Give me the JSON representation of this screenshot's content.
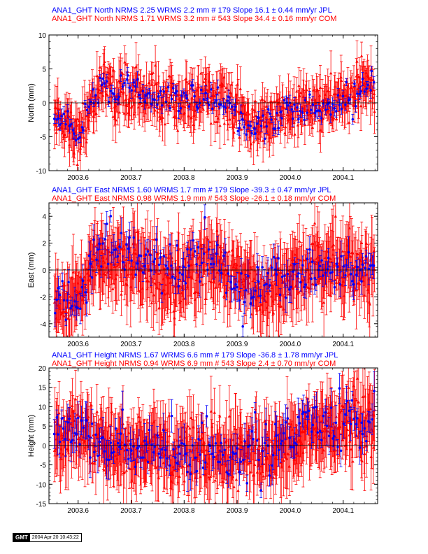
{
  "colors": {
    "jpl": "#0000ff",
    "com": "#ff0000",
    "axis": "#000000"
  },
  "footer": {
    "logo": "GMT",
    "timestamp": "2004 Apr 20 10:43:22"
  },
  "chart_data": [
    {
      "type": "scatter",
      "component": "north",
      "ylabel": "North (mm)",
      "ylim": [
        -10,
        10
      ],
      "yticks": [
        -10,
        -5,
        0,
        5,
        10
      ],
      "xlim": [
        2003.545,
        2004.165
      ],
      "xticks": [
        "2003.6",
        "2003.7",
        "2003.8",
        "2003.9",
        "2004.0",
        "2004.1"
      ],
      "legend": [
        {
          "text": "ANA1_GHT North NRMS 2.25 WRMS  2.2 mm # 179 Slope   16.1 ±  0.44 mm/yr JPL",
          "color": "#0000ff"
        },
        {
          "text": "ANA1_GHT North NRMS 1.71 WRMS  3.2 mm # 543 Slope   34.4 ±  0.16 mm/yr COM",
          "color": "#ff0000"
        }
      ],
      "series": [
        {
          "name": "JPL",
          "n": 179,
          "slope_mm_per_yr": 16.1,
          "wrms_mm": 2.2,
          "sigma_mm": 0.8,
          "trend_anchors": [
            [
              2003.55,
              -2
            ],
            [
              2003.58,
              -3.5
            ],
            [
              2003.6,
              -5.5
            ],
            [
              2003.62,
              -1
            ],
            [
              2003.64,
              3
            ],
            [
              2003.68,
              1.5
            ],
            [
              2003.72,
              2
            ],
            [
              2003.76,
              1
            ],
            [
              2003.8,
              0.5
            ],
            [
              2003.84,
              1
            ],
            [
              2003.88,
              0.5
            ],
            [
              2003.9,
              -2
            ],
            [
              2003.93,
              -3.5
            ],
            [
              2003.96,
              -2.5
            ],
            [
              2004.0,
              -1.5
            ],
            [
              2004.04,
              -1
            ],
            [
              2004.08,
              -0.5
            ],
            [
              2004.12,
              1
            ],
            [
              2004.15,
              4
            ],
            [
              2004.16,
              2
            ]
          ]
        },
        {
          "name": "COM",
          "n": 543,
          "slope_mm_per_yr": 34.4,
          "wrms_mm": 3.2,
          "sigma_mm": 2.4,
          "trend_anchors": [
            [
              2003.55,
              -1
            ],
            [
              2003.58,
              -3
            ],
            [
              2003.6,
              -5
            ],
            [
              2003.62,
              -1
            ],
            [
              2003.64,
              2.5
            ],
            [
              2003.68,
              1.5
            ],
            [
              2003.72,
              1.5
            ],
            [
              2003.76,
              0.5
            ],
            [
              2003.8,
              0
            ],
            [
              2003.84,
              1
            ],
            [
              2003.88,
              0
            ],
            [
              2003.9,
              -2
            ],
            [
              2003.93,
              -3
            ],
            [
              2003.96,
              -2.5
            ],
            [
              2004.0,
              -1.5
            ],
            [
              2004.04,
              -0.5
            ],
            [
              2004.08,
              0
            ],
            [
              2004.12,
              1
            ],
            [
              2004.15,
              3
            ],
            [
              2004.16,
              1.5
            ]
          ]
        }
      ]
    },
    {
      "type": "scatter",
      "component": "east",
      "ylabel": "East (mm)",
      "ylim": [
        -5,
        5
      ],
      "yticks": [
        -4,
        -2,
        0,
        2,
        4
      ],
      "xlim": [
        2003.545,
        2004.165
      ],
      "xticks": [
        "2003.6",
        "2003.7",
        "2003.8",
        "2003.9",
        "2004.0",
        "2004.1"
      ],
      "legend": [
        {
          "text": "ANA1_GHT East NRMS 1.60 WRMS  1.7 mm # 179 Slope  -39.3 ±  0.47 mm/yr JPL",
          "color": "#0000ff"
        },
        {
          "text": "ANA1_GHT East NRMS 0.98 WRMS  1.9 mm # 543 Slope  -26.1 ±  0.18 mm/yr COM",
          "color": "#ff0000"
        }
      ],
      "series": [
        {
          "name": "JPL",
          "n": 179,
          "slope_mm_per_yr": -39.3,
          "wrms_mm": 1.7,
          "sigma_mm": 0.8,
          "trend_anchors": [
            [
              2003.55,
              -1.5
            ],
            [
              2003.58,
              -2
            ],
            [
              2003.61,
              -2.5
            ],
            [
              2003.63,
              1.5
            ],
            [
              2003.66,
              2
            ],
            [
              2003.7,
              1
            ],
            [
              2003.74,
              0.5
            ],
            [
              2003.78,
              0
            ],
            [
              2003.82,
              0.5
            ],
            [
              2003.86,
              1
            ],
            [
              2003.88,
              -0.5
            ],
            [
              2003.92,
              -1.5
            ],
            [
              2003.96,
              -1
            ],
            [
              2004.0,
              -0.5
            ],
            [
              2004.04,
              0
            ],
            [
              2004.08,
              0.5
            ],
            [
              2004.12,
              0
            ],
            [
              2004.16,
              0.5
            ]
          ]
        },
        {
          "name": "COM",
          "n": 543,
          "slope_mm_per_yr": -26.1,
          "wrms_mm": 1.9,
          "sigma_mm": 2.0,
          "trend_anchors": [
            [
              2003.55,
              -2
            ],
            [
              2003.58,
              -2.5
            ],
            [
              2003.61,
              -2
            ],
            [
              2003.63,
              1
            ],
            [
              2003.66,
              1
            ],
            [
              2003.7,
              0.5
            ],
            [
              2003.74,
              0
            ],
            [
              2003.78,
              -1
            ],
            [
              2003.82,
              0
            ],
            [
              2003.86,
              0.5
            ],
            [
              2003.88,
              -0.5
            ],
            [
              2003.92,
              -1
            ],
            [
              2003.96,
              -1.5
            ],
            [
              2004.0,
              -0.5
            ],
            [
              2004.04,
              0
            ],
            [
              2004.08,
              0.5
            ],
            [
              2004.12,
              0.5
            ],
            [
              2004.16,
              0
            ]
          ]
        }
      ]
    },
    {
      "type": "scatter",
      "component": "height",
      "ylabel": "Height (mm)",
      "ylim": [
        -15,
        20
      ],
      "yticks": [
        -15,
        -10,
        -5,
        0,
        5,
        10,
        15,
        20
      ],
      "xlim": [
        2003.545,
        2004.165
      ],
      "xticks": [
        "2003.6",
        "2003.7",
        "2003.8",
        "2003.9",
        "2004.0",
        "2004.1"
      ],
      "legend": [
        {
          "text": "ANA1_GHT Height NRMS 1.67 WRMS  6.6 mm # 179 Slope  -36.8 ±  1.78 mm/yr JPL",
          "color": "#0000ff"
        },
        {
          "text": "ANA1_GHT Height NRMS 0.94 WRMS  6.9 mm # 543 Slope    2.4 ±  0.70 mm/yr COM",
          "color": "#ff0000"
        }
      ],
      "series": [
        {
          "name": "JPL",
          "n": 179,
          "slope_mm_per_yr": -36.8,
          "wrms_mm": 6.6,
          "sigma_mm": 3.5,
          "trend_anchors": [
            [
              2003.55,
              5
            ],
            [
              2003.58,
              3
            ],
            [
              2003.62,
              2
            ],
            [
              2003.66,
              1
            ],
            [
              2003.7,
              0
            ],
            [
              2003.74,
              -1
            ],
            [
              2003.78,
              -2
            ],
            [
              2003.82,
              -3
            ],
            [
              2003.86,
              -3
            ],
            [
              2003.9,
              -2
            ],
            [
              2003.94,
              -2
            ],
            [
              2003.98,
              -1
            ],
            [
              2004.01,
              2
            ],
            [
              2004.04,
              6
            ],
            [
              2004.08,
              5
            ],
            [
              2004.12,
              7
            ],
            [
              2004.16,
              8
            ]
          ]
        },
        {
          "name": "COM",
          "n": 543,
          "slope_mm_per_yr": 2.4,
          "wrms_mm": 6.9,
          "sigma_mm": 7.0,
          "trend_anchors": [
            [
              2003.55,
              2
            ],
            [
              2003.58,
              2
            ],
            [
              2003.62,
              1
            ],
            [
              2003.66,
              0
            ],
            [
              2003.7,
              -1
            ],
            [
              2003.74,
              -1
            ],
            [
              2003.78,
              -2
            ],
            [
              2003.82,
              -2
            ],
            [
              2003.86,
              -2
            ],
            [
              2003.9,
              -2
            ],
            [
              2003.94,
              -2
            ],
            [
              2003.98,
              -1
            ],
            [
              2004.01,
              1
            ],
            [
              2004.04,
              4
            ],
            [
              2004.08,
              4
            ],
            [
              2004.12,
              6
            ],
            [
              2004.16,
              6
            ]
          ]
        }
      ]
    }
  ]
}
